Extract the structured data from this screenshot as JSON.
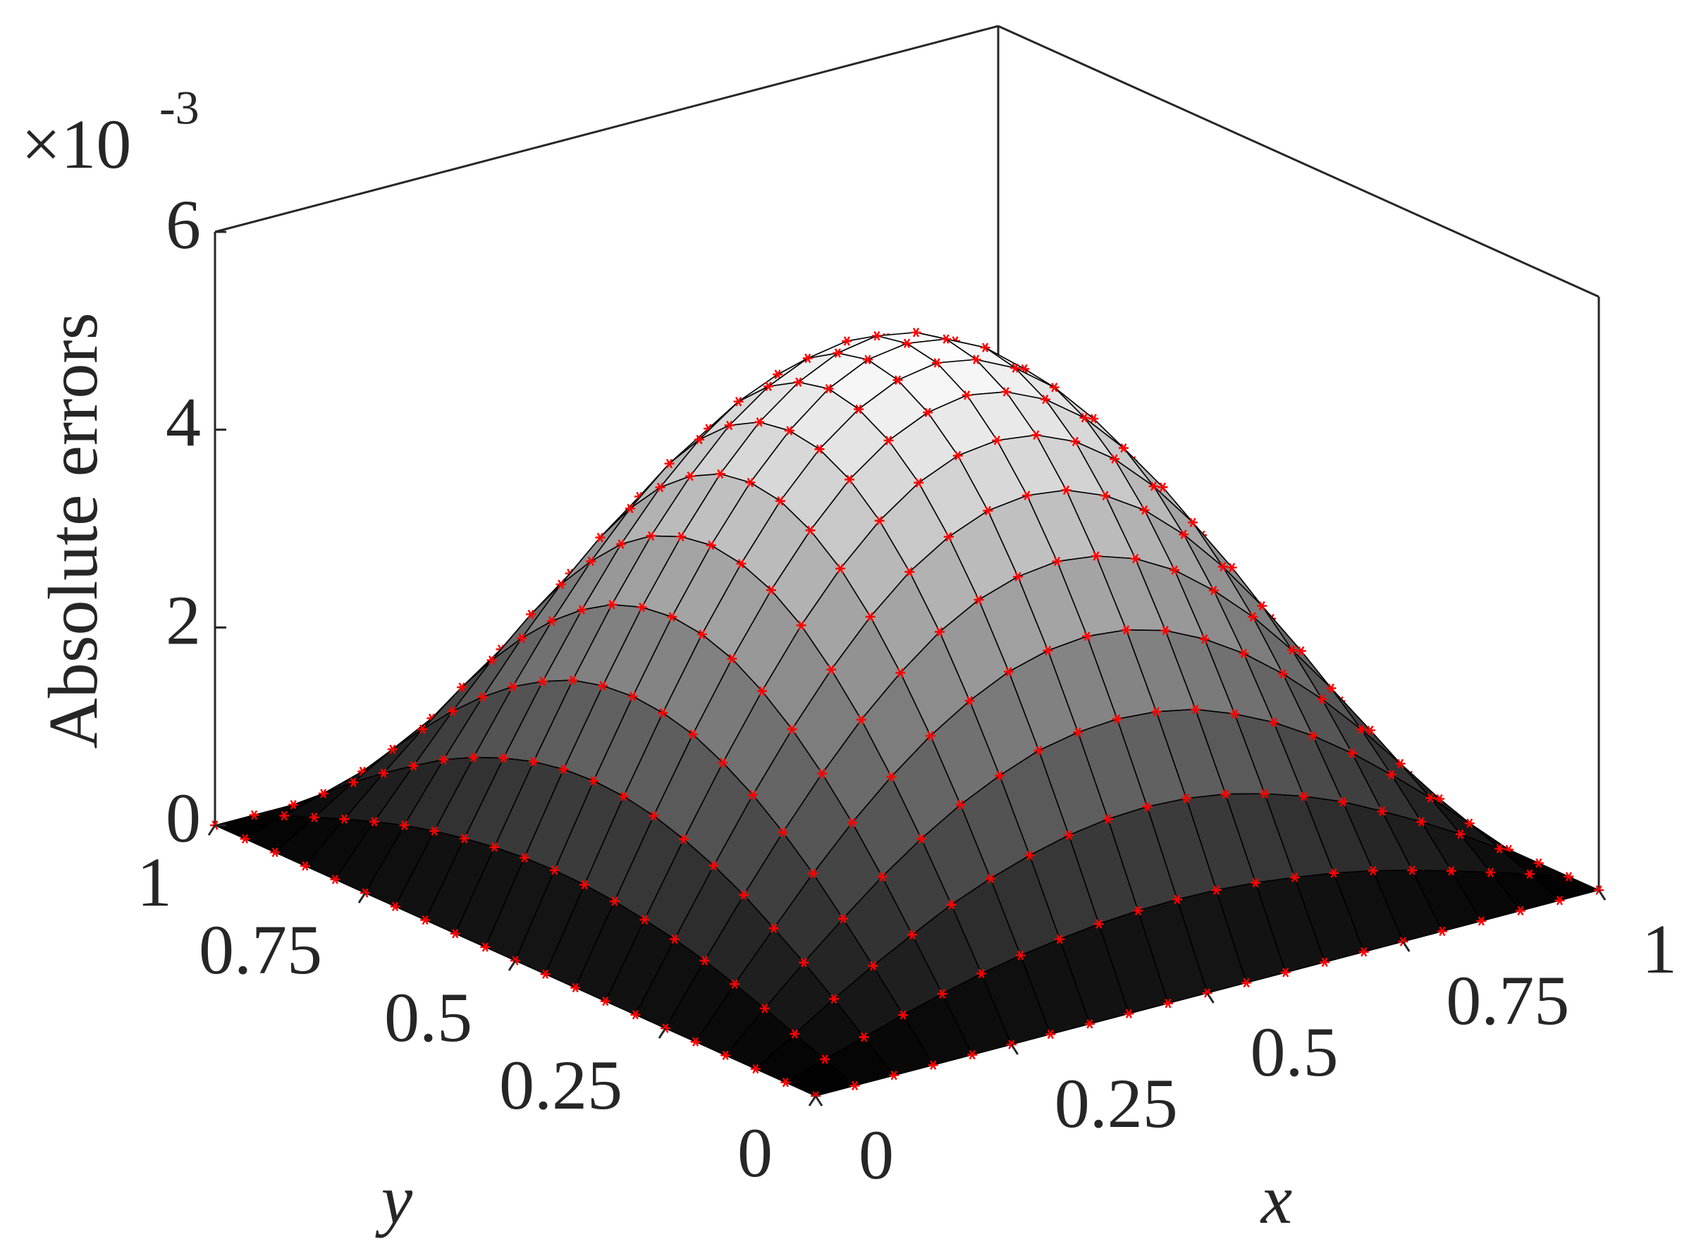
{
  "chart_data": {
    "type": "surface",
    "zlabel": "Absolute errors",
    "xlabel": "x",
    "ylabel": "y",
    "z_multiplier": {
      "base": "×10",
      "exponent": "-3"
    },
    "x": [
      0,
      0.05,
      0.1,
      0.15,
      0.2,
      0.25,
      0.3,
      0.35,
      0.4,
      0.45,
      0.5,
      0.55,
      0.6,
      0.65,
      0.7,
      0.75,
      0.8,
      0.85,
      0.9,
      0.95,
      1
    ],
    "y": [
      0,
      0.05,
      0.1,
      0.15,
      0.2,
      0.25,
      0.3,
      0.35,
      0.4,
      0.45,
      0.5,
      0.55,
      0.6,
      0.65,
      0.7,
      0.75,
      0.8,
      0.85,
      0.9,
      0.95,
      1
    ],
    "z": [
      [
        0,
        0,
        0,
        0,
        0,
        0,
        0,
        0,
        0,
        0,
        0,
        0,
        0,
        0,
        0,
        0,
        0,
        0,
        0,
        0,
        0
      ],
      [
        0,
        0.13,
        0.25,
        0.37,
        0.48,
        0.58,
        0.66,
        0.72,
        0.77,
        0.8,
        0.81,
        0.8,
        0.77,
        0.72,
        0.66,
        0.58,
        0.48,
        0.37,
        0.25,
        0.13,
        0
      ],
      [
        0,
        0.25,
        0.5,
        0.73,
        0.94,
        1.14,
        1.3,
        1.43,
        1.53,
        1.59,
        1.61,
        1.59,
        1.53,
        1.43,
        1.3,
        1.14,
        0.94,
        0.73,
        0.5,
        0.25,
        0
      ],
      [
        0,
        0.37,
        0.73,
        1.07,
        1.39,
        1.67,
        1.91,
        2.1,
        2.25,
        2.33,
        2.36,
        2.33,
        2.25,
        2.1,
        1.91,
        1.67,
        1.39,
        1.07,
        0.73,
        0.37,
        0
      ],
      [
        0,
        0.48,
        0.94,
        1.39,
        1.8,
        2.16,
        2.47,
        2.72,
        2.91,
        3.02,
        3.06,
        3.02,
        2.91,
        2.72,
        2.47,
        2.16,
        1.8,
        1.39,
        0.94,
        0.48,
        0
      ],
      [
        0,
        0.58,
        1.14,
        1.67,
        2.16,
        2.6,
        2.97,
        3.28,
        3.5,
        3.63,
        3.68,
        3.63,
        3.5,
        3.28,
        2.97,
        2.6,
        2.16,
        1.67,
        1.14,
        0.58,
        0
      ],
      [
        0,
        0.66,
        1.3,
        1.91,
        2.47,
        2.97,
        3.4,
        3.75,
        4.0,
        4.16,
        4.21,
        4.16,
        4.0,
        3.75,
        3.4,
        2.97,
        2.47,
        1.91,
        1.3,
        0.66,
        0
      ],
      [
        0,
        0.72,
        1.43,
        2.1,
        2.72,
        3.28,
        3.75,
        4.13,
        4.41,
        4.58,
        4.63,
        4.58,
        4.41,
        4.13,
        3.75,
        3.28,
        2.72,
        2.1,
        1.43,
        0.72,
        0
      ],
      [
        0,
        0.77,
        1.53,
        2.25,
        2.91,
        3.5,
        4.0,
        4.41,
        4.7,
        4.88,
        4.95,
        4.88,
        4.7,
        4.41,
        4.0,
        3.5,
        2.91,
        2.25,
        1.53,
        0.77,
        0
      ],
      [
        0,
        0.8,
        1.59,
        2.33,
        3.02,
        3.63,
        4.16,
        4.58,
        4.88,
        5.07,
        5.14,
        5.07,
        4.88,
        4.58,
        4.16,
        3.63,
        3.02,
        2.33,
        1.59,
        0.8,
        0
      ],
      [
        0,
        0.81,
        1.61,
        2.36,
        3.06,
        3.68,
        4.21,
        4.63,
        4.95,
        5.14,
        5.2,
        5.14,
        4.95,
        4.63,
        4.21,
        3.68,
        3.06,
        2.36,
        1.61,
        0.81,
        0
      ],
      [
        0,
        0.8,
        1.59,
        2.33,
        3.02,
        3.63,
        4.16,
        4.58,
        4.88,
        5.07,
        5.14,
        5.07,
        4.88,
        4.58,
        4.16,
        3.63,
        3.02,
        2.33,
        1.59,
        0.8,
        0
      ],
      [
        0,
        0.77,
        1.53,
        2.25,
        2.91,
        3.5,
        4.0,
        4.41,
        4.7,
        4.88,
        4.95,
        4.88,
        4.7,
        4.41,
        4.0,
        3.5,
        2.91,
        2.25,
        1.53,
        0.77,
        0
      ],
      [
        0,
        0.72,
        1.43,
        2.1,
        2.72,
        3.28,
        3.75,
        4.13,
        4.41,
        4.58,
        4.63,
        4.58,
        4.41,
        4.13,
        3.75,
        3.28,
        2.72,
        2.1,
        1.43,
        0.72,
        0
      ],
      [
        0,
        0.66,
        1.3,
        1.91,
        2.47,
        2.97,
        3.4,
        3.75,
        4.0,
        4.16,
        4.21,
        4.16,
        4.0,
        3.75,
        3.4,
        2.97,
        2.47,
        1.91,
        1.3,
        0.66,
        0
      ],
      [
        0,
        0.58,
        1.14,
        1.67,
        2.16,
        2.6,
        2.97,
        3.28,
        3.5,
        3.63,
        3.68,
        3.63,
        3.5,
        3.28,
        2.97,
        2.6,
        2.16,
        1.67,
        1.14,
        0.58,
        0
      ],
      [
        0,
        0.48,
        0.94,
        1.39,
        1.8,
        2.16,
        2.47,
        2.72,
        2.91,
        3.02,
        3.06,
        3.02,
        2.91,
        2.72,
        2.47,
        2.16,
        1.8,
        1.39,
        0.94,
        0.48,
        0
      ],
      [
        0,
        0.37,
        0.73,
        1.07,
        1.39,
        1.67,
        1.91,
        2.1,
        2.25,
        2.33,
        2.36,
        2.33,
        2.25,
        2.1,
        1.91,
        1.67,
        1.39,
        1.07,
        0.73,
        0.37,
        0
      ],
      [
        0,
        0.25,
        0.5,
        0.73,
        0.94,
        1.14,
        1.3,
        1.43,
        1.53,
        1.59,
        1.61,
        1.59,
        1.53,
        1.43,
        1.3,
        1.14,
        0.94,
        0.73,
        0.5,
        0.25,
        0
      ],
      [
        0,
        0.13,
        0.25,
        0.37,
        0.48,
        0.58,
        0.66,
        0.72,
        0.77,
        0.8,
        0.81,
        0.8,
        0.77,
        0.72,
        0.66,
        0.58,
        0.48,
        0.37,
        0.25,
        0.13,
        0
      ],
      [
        0,
        0,
        0,
        0,
        0,
        0,
        0,
        0,
        0,
        0,
        0,
        0,
        0,
        0,
        0,
        0,
        0,
        0,
        0,
        0,
        0
      ]
    ],
    "xlim": [
      0,
      1
    ],
    "ylim": [
      0,
      1
    ],
    "zlim": [
      0,
      6
    ],
    "xticks": [
      0,
      0.25,
      0.5,
      0.75,
      1
    ],
    "yticks": [
      0,
      0.25,
      0.5,
      0.75,
      1
    ],
    "zticks": [
      0,
      2,
      4,
      6
    ],
    "colormap": "gray",
    "edge_color": "#000000",
    "marker_color": "#ff0000"
  }
}
